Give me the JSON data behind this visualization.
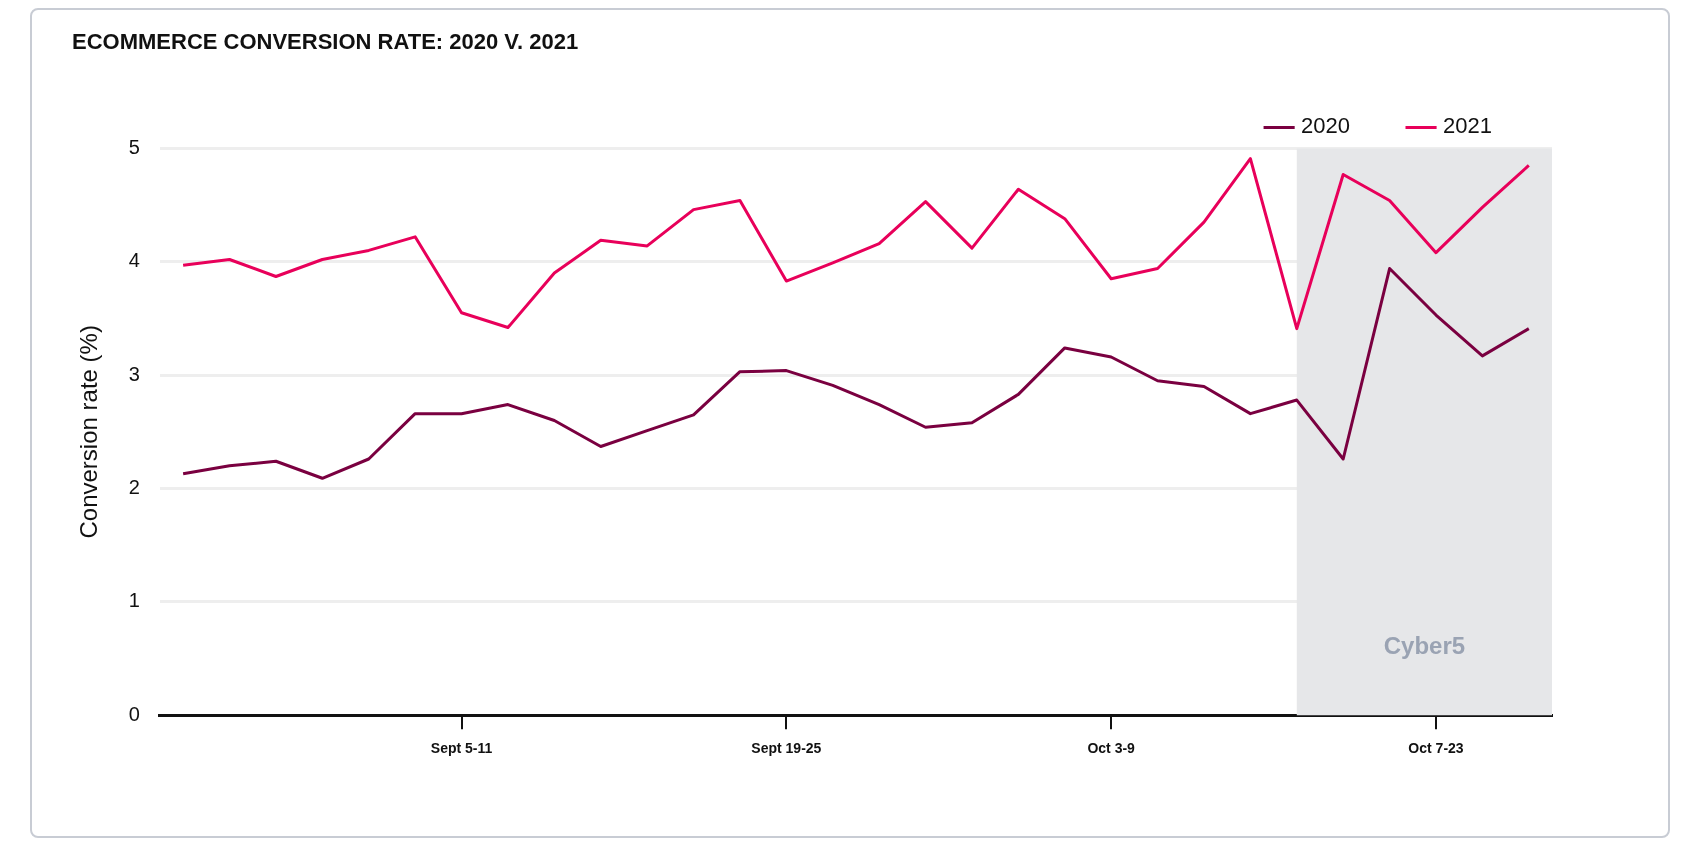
{
  "chart_data": {
    "type": "line",
    "title": "ECOMMERCE CONVERSION RATE: 2020 V. 2021",
    "ylabel": "Conversion rate (%)",
    "categories": [
      null,
      null,
      null,
      null,
      null,
      null,
      "Sept 5-11",
      null,
      null,
      null,
      null,
      null,
      null,
      "Sept 19-25",
      null,
      null,
      null,
      null,
      null,
      null,
      "Oct 3-9",
      null,
      null,
      null,
      null,
      null,
      null,
      "Oct 7-23",
      null,
      null
    ],
    "ylim": [
      0,
      5
    ],
    "yticks": [
      0,
      1,
      2,
      3,
      4,
      5
    ],
    "series": [
      {
        "name": "2020",
        "color": "#7a0040",
        "values": [
          2.13,
          2.2,
          2.24,
          2.09,
          2.26,
          2.66,
          2.66,
          2.74,
          2.6,
          2.37,
          2.51,
          2.65,
          3.03,
          3.04,
          2.91,
          2.74,
          2.54,
          2.58,
          2.83,
          3.24,
          3.16,
          2.95,
          2.9,
          2.66,
          2.78,
          2.26,
          3.94,
          3.53,
          3.17,
          3.41
        ]
      },
      {
        "name": "2021",
        "color": "#e8005a",
        "values": [
          3.97,
          4.02,
          3.87,
          4.02,
          4.1,
          4.22,
          3.55,
          3.42,
          3.9,
          4.19,
          4.14,
          4.46,
          4.54,
          3.83,
          3.99,
          4.16,
          4.53,
          4.12,
          4.64,
          4.38,
          3.85,
          3.94,
          4.35,
          4.91,
          3.41,
          4.77,
          4.54,
          4.08,
          4.48,
          4.85
        ]
      }
    ],
    "annotations": [
      "Cyber5"
    ],
    "grid": "y",
    "legend": "top right",
    "marker": "none",
    "line_style": "solid"
  }
}
